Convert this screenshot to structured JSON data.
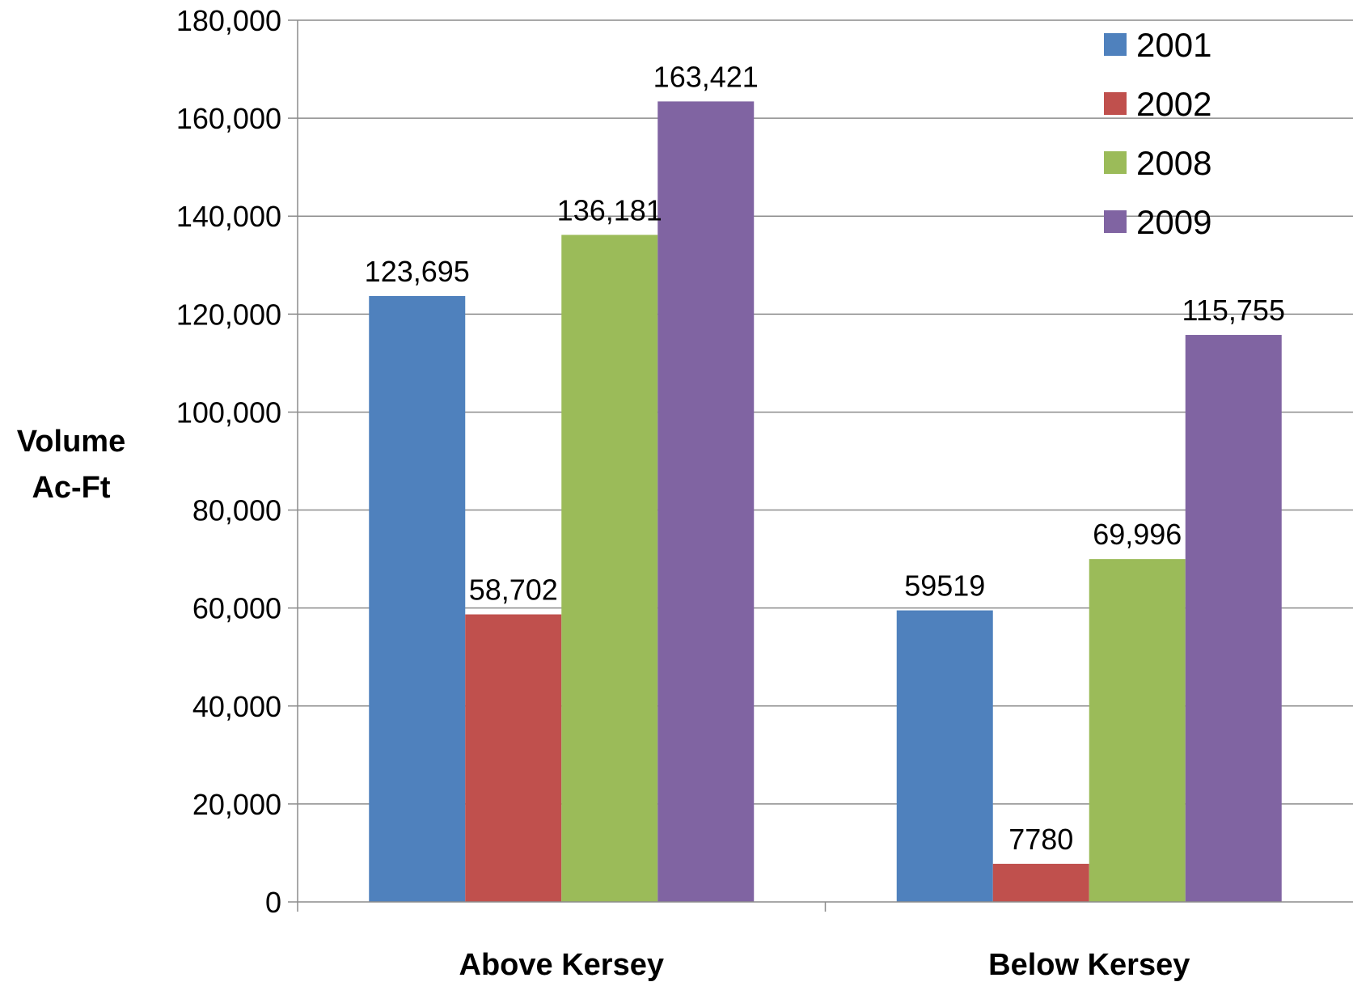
{
  "chart_data": {
    "type": "bar",
    "title": "",
    "xlabel": "",
    "ylabel": [
      "Volume",
      "Ac-Ft"
    ],
    "categories": [
      "Above Kersey",
      "Below Kersey"
    ],
    "series": [
      {
        "name": "2001",
        "values": [
          123695,
          59519
        ],
        "labels": [
          "123,695",
          "59519"
        ],
        "color": "#4f81bd"
      },
      {
        "name": "2002",
        "values": [
          58702,
          7780
        ],
        "labels": [
          "58,702",
          "7780"
        ],
        "color": "#c0504d"
      },
      {
        "name": "2008",
        "values": [
          136181,
          69996
        ],
        "labels": [
          "136,181",
          "69,996"
        ],
        "color": "#9bbb59"
      },
      {
        "name": "2009",
        "values": [
          163421,
          115755
        ],
        "labels": [
          "163,421",
          "115,755"
        ],
        "color": "#8064a2"
      }
    ],
    "ylim": [
      0,
      180000
    ],
    "yticks": [
      0,
      20000,
      40000,
      60000,
      80000,
      100000,
      120000,
      140000,
      160000,
      180000
    ],
    "ytick_labels": [
      "0",
      "20,000",
      "40,000",
      "60,000",
      "80,000",
      "100,000",
      "120,000",
      "140,000",
      "160,000",
      "180,000"
    ],
    "grid": true,
    "legend_position": "top-right"
  }
}
